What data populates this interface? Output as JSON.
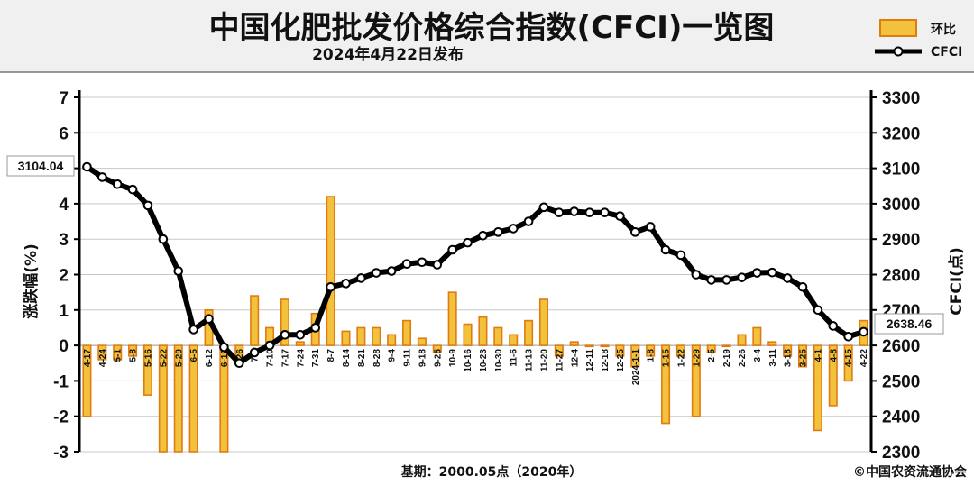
{
  "header": {
    "title": "中国化肥批发价格综合指数(CFCI)一览图",
    "subtitle": "2024年4月22日发布"
  },
  "legend": {
    "bar_label": "环比",
    "line_label": "CFCI"
  },
  "footer": {
    "base_note": "基期：2000.05点（2020年）",
    "copyright": "©中国农资流通协会"
  },
  "callouts": {
    "first": "3104.04",
    "last": "2638.46"
  },
  "colors": {
    "bar_fill": "#f3c23c",
    "bar_edge": "#e07b12",
    "line": "#000000",
    "marker_fill": "#ffffff",
    "grid": "#c8c8c8",
    "header_bg": "#f0f0f0",
    "plot_bg": "#ffffff"
  },
  "chart_data": {
    "type": "bar",
    "left_axis": {
      "label": "涨跌幅(%)",
      "ticks": [
        "7",
        "6",
        "5",
        "4",
        "3",
        "2",
        "1",
        "0",
        "-1",
        "-2",
        "-3"
      ],
      "range": [
        -3,
        7
      ]
    },
    "right_axis": {
      "label": "CFCI(点)",
      "ticks": [
        "3300",
        "3200",
        "3100",
        "3000",
        "2900",
        "2800",
        "2700",
        "2600",
        "2500",
        "2400",
        "2300"
      ],
      "range": [
        2300,
        3300
      ]
    },
    "grid": true,
    "legend_position": "top-right",
    "categories": [
      "4-17",
      "4-24",
      "5-1",
      "5-8",
      "5-16",
      "5-22",
      "5-29",
      "6-5",
      "6-12",
      "6-19",
      "6-26",
      "7-3",
      "7-10",
      "7-17",
      "7-24",
      "7-31",
      "8-7",
      "8-14",
      "8-21",
      "8-28",
      "9-4",
      "9-11",
      "9-18",
      "9-25",
      "10-9",
      "10-16",
      "10-23",
      "10-30",
      "11-6",
      "11-13",
      "11-20",
      "11-27",
      "12-4",
      "12-11",
      "12-18",
      "12-25",
      "2024-1-1",
      "1-8",
      "1-15",
      "1-22",
      "1-29",
      "2-5",
      "2-19",
      "2-26",
      "3-4",
      "3-11",
      "3-18",
      "3-25",
      "4-1",
      "4-8",
      "4-15",
      "4-22"
    ],
    "series": [
      {
        "name": "环比",
        "type": "bar",
        "axis": "left",
        "values": [
          -2.0,
          -0.4,
          -0.4,
          -0.3,
          -1.4,
          -3.0,
          -3.0,
          -3.0,
          1.0,
          -3.0,
          -0.4,
          1.4,
          0.5,
          1.3,
          0.1,
          0.9,
          4.2,
          0.4,
          0.5,
          0.5,
          0.3,
          0.7,
          0.2,
          -0.2,
          1.5,
          0.6,
          0.8,
          0.5,
          0.3,
          0.7,
          1.3,
          -0.3,
          0.1,
          0.0,
          0.0,
          -0.3,
          -0.6,
          -0.3,
          -2.2,
          -0.3,
          -2.0,
          -0.2,
          0.0,
          0.3,
          0.5,
          0.1,
          -0.3,
          -0.6,
          -2.4,
          -1.7,
          -1.0,
          0.7
        ]
      },
      {
        "name": "CFCI",
        "type": "line",
        "axis": "right",
        "values": [
          3104.04,
          3075,
          3055,
          3040,
          2995,
          2900,
          2810,
          2645,
          2675,
          2595,
          2550,
          2580,
          2600,
          2630,
          2630,
          2650,
          2765,
          2775,
          2790,
          2805,
          2810,
          2830,
          2835,
          2828,
          2870,
          2890,
          2910,
          2920,
          2930,
          2950,
          2990,
          2975,
          2978,
          2975,
          2975,
          2965,
          2920,
          2935,
          2870,
          2855,
          2800,
          2785,
          2785,
          2792,
          2805,
          2806,
          2790,
          2765,
          2700,
          2655,
          2625,
          2638.46
        ]
      }
    ]
  }
}
